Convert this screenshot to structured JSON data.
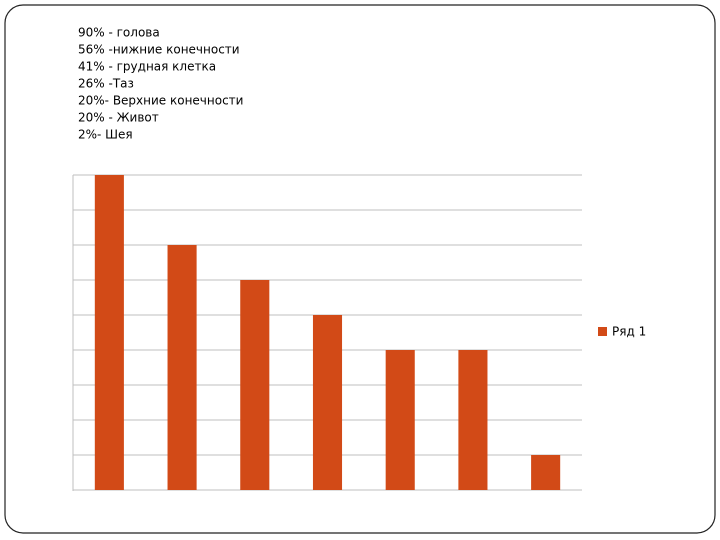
{
  "chart_data": {
    "type": "bar",
    "annotations": [
      "90% - голова",
      "56% -нижние конечности",
      "41% - грудная клетка",
      "26% -Таз",
      "20%- Верхние конечности",
      "20% - Живот",
      "2%- Шея"
    ],
    "categories": [
      null,
      null,
      null,
      null,
      null,
      null,
      null
    ],
    "series": [
      {
        "name": "Ряд 1",
        "color": "#d24a17",
        "values": [
          9,
          7,
          6,
          5,
          4,
          4,
          1
        ]
      }
    ],
    "ylim": [
      0,
      9
    ],
    "yticks": [
      0,
      1,
      2,
      3,
      4,
      5,
      6,
      7,
      8,
      9
    ],
    "grid": true,
    "legend": "right"
  }
}
